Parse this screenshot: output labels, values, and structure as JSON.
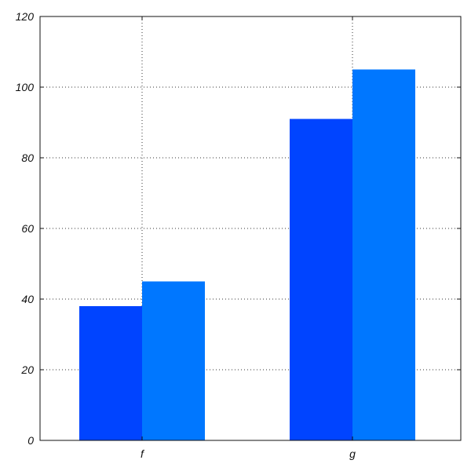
{
  "chart_data": {
    "type": "bar",
    "title": "",
    "xlabel": "",
    "ylabel": "",
    "categories": [
      "f",
      "g"
    ],
    "series": [
      {
        "values": [
          38,
          91
        ]
      },
      {
        "values": [
          45,
          105
        ]
      }
    ],
    "ylim": [
      0,
      120
    ],
    "yticks": [
      "0",
      "20",
      "40",
      "60",
      "80",
      "100",
      "120"
    ],
    "ytick_values": [
      0,
      20,
      40,
      60,
      80,
      100,
      120
    ],
    "grid": true,
    "legend": "none",
    "colors": [
      "#0044ff",
      "#0077ff"
    ]
  }
}
